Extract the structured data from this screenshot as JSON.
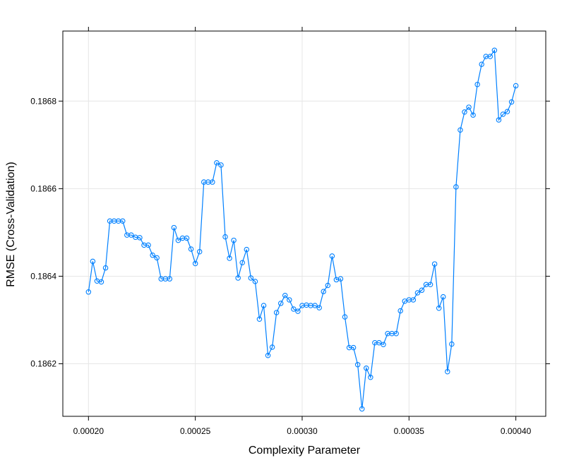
{
  "chart_data": {
    "type": "line",
    "title": "",
    "xlabel": "Complexity Parameter",
    "ylabel": "RMSE (Cross-Validation)",
    "xlim": [
      0.000188,
      0.000414
    ],
    "ylim": [
      0.18608,
      0.18696
    ],
    "x_ticks": [
      0.0002,
      0.00025,
      0.0003,
      0.00035,
      0.0004
    ],
    "x_tick_labels": [
      "0.00020",
      "0.00025",
      "0.00030",
      "0.00035",
      "0.00040"
    ],
    "y_ticks": [
      0.1862,
      0.1864,
      0.1866,
      0.1868
    ],
    "y_tick_labels": [
      "0.1862",
      "0.1864",
      "0.1866",
      "0.1868"
    ],
    "grid": true,
    "series_color": "#0080ff",
    "marker": "circle",
    "x_step": 2e-06,
    "x_start": 0.0002,
    "series": [
      {
        "values": [
          0.186364,
          0.186434,
          0.186389,
          0.186387,
          0.186419,
          0.186526,
          0.186526,
          0.186526,
          0.186526,
          0.186494,
          0.186494,
          0.186489,
          0.186488,
          0.186471,
          0.186471,
          0.186448,
          0.186442,
          0.186394,
          0.186394,
          0.186394,
          0.186511,
          0.186482,
          0.186487,
          0.186487,
          0.186462,
          0.186429,
          0.186456,
          0.186615,
          0.186615,
          0.186615,
          0.186659,
          0.186654,
          0.18649,
          0.186441,
          0.186482,
          0.186396,
          0.186431,
          0.186461,
          0.186396,
          0.186388,
          0.186302,
          0.186333,
          0.186219,
          0.186238,
          0.186317,
          0.186338,
          0.186356,
          0.186346,
          0.186325,
          0.18632,
          0.186333,
          0.186334,
          0.186333,
          0.186333,
          0.186328,
          0.186365,
          0.186379,
          0.186446,
          0.186392,
          0.186394,
          0.186307,
          0.186237,
          0.186237,
          0.186198,
          0.186097,
          0.18619,
          0.186169,
          0.186248,
          0.186248,
          0.186244,
          0.186269,
          0.186269,
          0.186269,
          0.186321,
          0.186343,
          0.186346,
          0.186346,
          0.186362,
          0.186368,
          0.186381,
          0.186381,
          0.186428,
          0.186327,
          0.186353,
          0.186182,
          0.186245,
          0.186604,
          0.186734,
          0.186775,
          0.186786,
          0.186768,
          0.186838,
          0.186884,
          0.186902,
          0.186902,
          0.186916,
          0.186757,
          0.18677,
          0.186776,
          0.186798,
          0.186835
        ]
      }
    ]
  }
}
